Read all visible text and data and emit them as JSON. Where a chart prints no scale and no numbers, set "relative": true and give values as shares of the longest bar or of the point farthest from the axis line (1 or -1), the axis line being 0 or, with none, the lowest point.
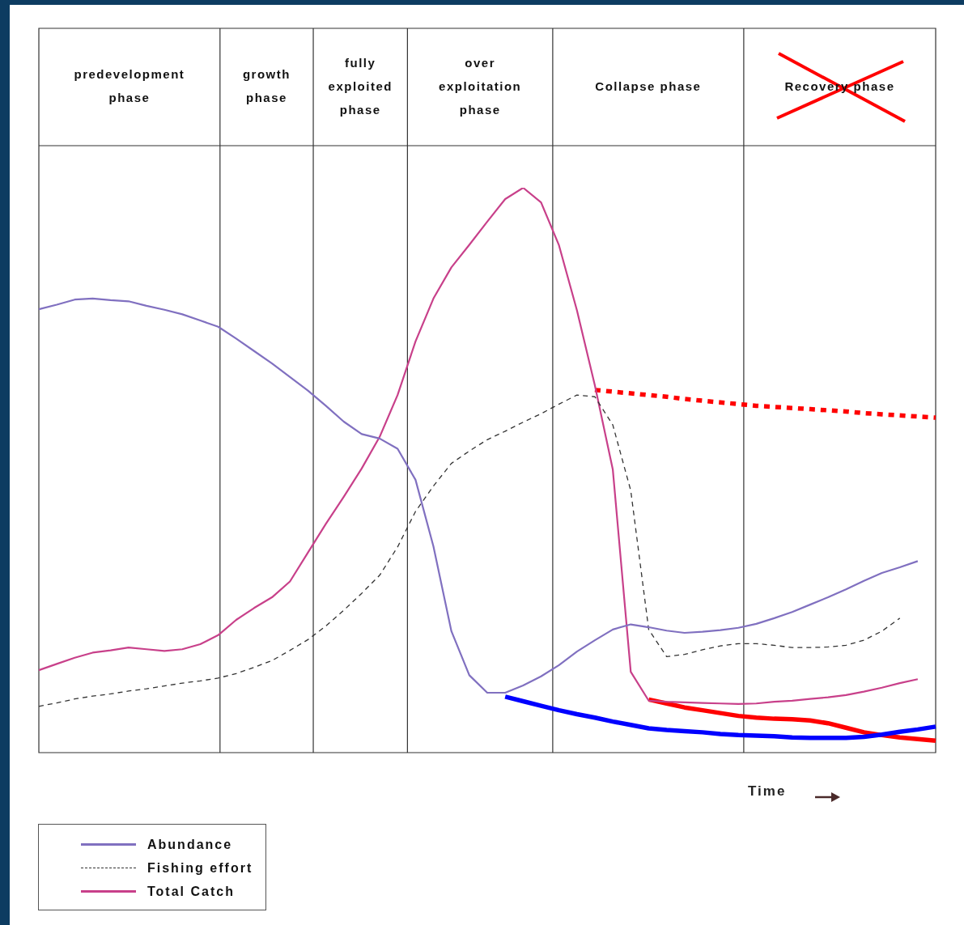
{
  "chart_data": {
    "type": "line",
    "xlabel": "Time",
    "relative": true,
    "marker": "none",
    "legend": "bottom left",
    "categories": [
      null,
      null,
      null,
      null,
      null,
      null,
      null,
      null,
      null,
      null,
      null,
      null,
      null,
      null,
      null,
      null,
      null,
      null,
      null,
      null,
      null,
      null,
      null,
      null,
      null,
      null,
      null,
      null,
      null,
      null,
      null,
      null,
      null,
      null,
      null,
      null,
      null,
      null,
      null,
      null,
      null,
      null,
      null,
      null,
      null,
      null,
      null,
      null,
      null,
      null,
      null
    ],
    "annotations": [
      "predevelopment phase",
      "growth phase",
      "fully exploited phase",
      "over exploitation phase",
      "Collapse phase",
      "Recovery phase"
    ],
    "series": [
      {
        "name": "Abundance",
        "color": "#8070c0",
        "line_style": "solid",
        "values": [
          0.785,
          0.793,
          0.802,
          0.804,
          0.801,
          0.799,
          0.791,
          0.784,
          0.776,
          0.765,
          0.754,
          0.733,
          0.711,
          0.689,
          0.665,
          0.641,
          0.614,
          0.586,
          0.564,
          0.556,
          0.538,
          0.483,
          0.365,
          0.215,
          0.137,
          0.106,
          0.106,
          0.119,
          0.135,
          0.155,
          0.179,
          0.199,
          0.218,
          0.227,
          0.222,
          0.216,
          0.212,
          0.214,
          0.217,
          0.221,
          0.228,
          0.238,
          0.249,
          0.262,
          0.275,
          0.289,
          0.304,
          0.318,
          0.328,
          0.339,
          null
        ]
      },
      {
        "name": "Fishing effort",
        "color": "#333333",
        "line_style": "dashed",
        "values": [
          0.082,
          0.088,
          0.095,
          0.1,
          0.104,
          0.109,
          0.113,
          0.118,
          0.123,
          0.127,
          0.132,
          0.14,
          0.151,
          0.163,
          0.181,
          0.2,
          0.224,
          0.252,
          0.282,
          0.314,
          0.364,
          0.427,
          0.472,
          0.512,
          0.534,
          0.554,
          0.569,
          0.585,
          0.6,
          0.617,
          0.633,
          0.63,
          0.58,
          0.464,
          0.218,
          0.17,
          0.174,
          0.182,
          0.189,
          0.193,
          0.193,
          0.19,
          0.186,
          0.186,
          0.187,
          0.19,
          0.199,
          0.215,
          0.238,
          null,
          null
        ]
      },
      {
        "name": "Total Catch",
        "color": "#c8408a",
        "line_style": "solid",
        "values": [
          0.146,
          0.157,
          0.168,
          0.177,
          0.181,
          0.186,
          0.183,
          0.18,
          0.183,
          0.192,
          0.208,
          0.235,
          0.256,
          0.275,
          0.303,
          0.354,
          0.405,
          0.453,
          0.503,
          0.559,
          0.633,
          0.728,
          0.804,
          0.859,
          0.899,
          0.94,
          0.98,
          1,
          0.974,
          0.898,
          0.783,
          0.65,
          0.501,
          0.143,
          0.092,
          0.09,
          0.089,
          0.088,
          0.087,
          0.086,
          0.087,
          0.09,
          0.092,
          0.095,
          0.098,
          0.102,
          0.108,
          0.115,
          0.123,
          0.13,
          null
        ]
      },
      {
        "color": "#ff0000",
        "line_style": "dotted",
        "values": [
          null,
          null,
          null,
          null,
          null,
          null,
          null,
          null,
          null,
          null,
          null,
          null,
          null,
          null,
          null,
          null,
          null,
          null,
          null,
          null,
          null,
          null,
          null,
          null,
          null,
          null,
          null,
          null,
          null,
          null,
          null,
          0.642,
          0.639,
          0.636,
          0.633,
          0.63,
          0.626,
          0.623,
          0.62,
          0.617,
          0.614,
          0.612,
          0.61,
          0.608,
          0.606,
          0.604,
          0.601,
          0.599,
          0.597,
          0.595,
          0.593
        ]
      },
      {
        "color": "#0000ff",
        "line_style": "solid",
        "values": [
          null,
          null,
          null,
          null,
          null,
          null,
          null,
          null,
          null,
          null,
          null,
          null,
          null,
          null,
          null,
          null,
          null,
          null,
          null,
          null,
          null,
          null,
          null,
          null,
          null,
          null,
          0.099,
          0.091,
          0.083,
          0.075,
          0.068,
          0.062,
          0.055,
          0.049,
          0.043,
          0.04,
          0.038,
          0.036,
          0.033,
          0.031,
          0.03,
          0.029,
          0.027,
          0.026,
          0.026,
          0.026,
          0.028,
          0.032,
          0.037,
          0.041,
          0.046
        ]
      },
      {
        "color": "#ff0000",
        "line_style": "solid",
        "values": [
          null,
          null,
          null,
          null,
          null,
          null,
          null,
          null,
          null,
          null,
          null,
          null,
          null,
          null,
          null,
          null,
          null,
          null,
          null,
          null,
          null,
          null,
          null,
          null,
          null,
          null,
          null,
          null,
          null,
          null,
          null,
          null,
          null,
          null,
          0.094,
          0.087,
          0.08,
          0.075,
          0.07,
          0.065,
          0.062,
          0.06,
          0.059,
          0.057,
          0.052,
          0.044,
          0.036,
          0.031,
          0.027,
          0.024,
          0.021
        ]
      }
    ]
  }
}
